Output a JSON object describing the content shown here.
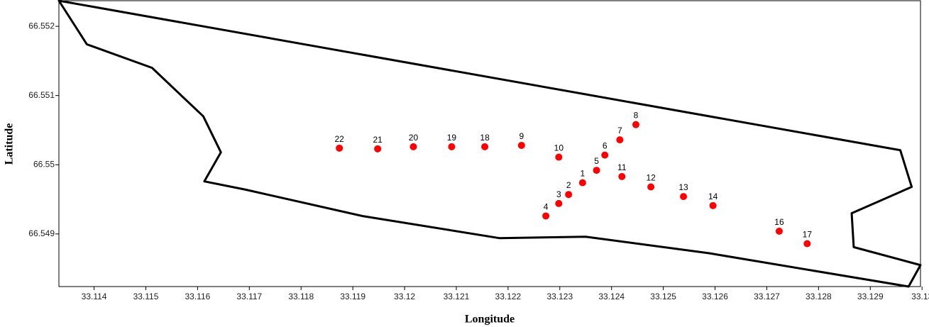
{
  "chart_data": {
    "type": "scatter",
    "x_label": "Longitude",
    "y_label": "Latitude",
    "xlim": [
      33.11332,
      33.12997
    ],
    "ylim": [
      66.54824,
      66.55237
    ],
    "xticks": [
      33.114,
      33.115,
      33.116,
      33.117,
      33.118,
      33.119,
      33.12,
      33.121,
      33.122,
      33.123,
      33.124,
      33.125,
      33.126,
      33.127,
      33.128,
      33.129,
      33.13
    ],
    "yticks": [
      66.549,
      66.55,
      66.551,
      66.552
    ],
    "point_color": "#ff0000",
    "boundary_color": "#000000",
    "points": {
      "labels": [
        "22",
        "21",
        "20",
        "19",
        "18",
        "9",
        "10",
        "6",
        "7",
        "8",
        "5",
        "11",
        "1",
        "12",
        "2",
        "13",
        "3",
        "14",
        "4",
        "16",
        "17"
      ],
      "x": [
        33.11874,
        33.11948,
        33.12017,
        33.12091,
        33.12155,
        33.12226,
        33.12298,
        33.12387,
        33.12416,
        33.12447,
        33.12371,
        33.1242,
        33.12344,
        33.12476,
        33.12317,
        33.12539,
        33.12298,
        33.12596,
        33.12273,
        33.12724,
        33.12778
      ],
      "y": [
        66.55024,
        66.55023,
        66.55026,
        66.55026,
        66.55026,
        66.55028,
        66.55011,
        66.55014,
        66.55036,
        66.55058,
        66.54992,
        66.54983,
        66.54974,
        66.54968,
        66.54957,
        66.54954,
        66.54944,
        66.54941,
        66.54926,
        66.54904,
        66.54886
      ]
    },
    "boundary": {
      "x": [
        33.11332,
        33.11386,
        33.11512,
        33.11611,
        33.11645,
        33.11613,
        33.11693,
        33.11918,
        33.12183,
        33.1235,
        33.1259,
        33.12974,
        33.12997,
        33.12868,
        33.12864,
        33.1298,
        33.12958
      ],
      "y": [
        66.55237,
        66.55174,
        66.5514,
        66.5507,
        66.55018,
        66.54976,
        66.54964,
        66.54926,
        66.54894,
        66.54896,
        66.54872,
        66.54824,
        66.54855,
        66.54881,
        66.5493,
        66.54968,
        66.55021
      ]
    }
  }
}
